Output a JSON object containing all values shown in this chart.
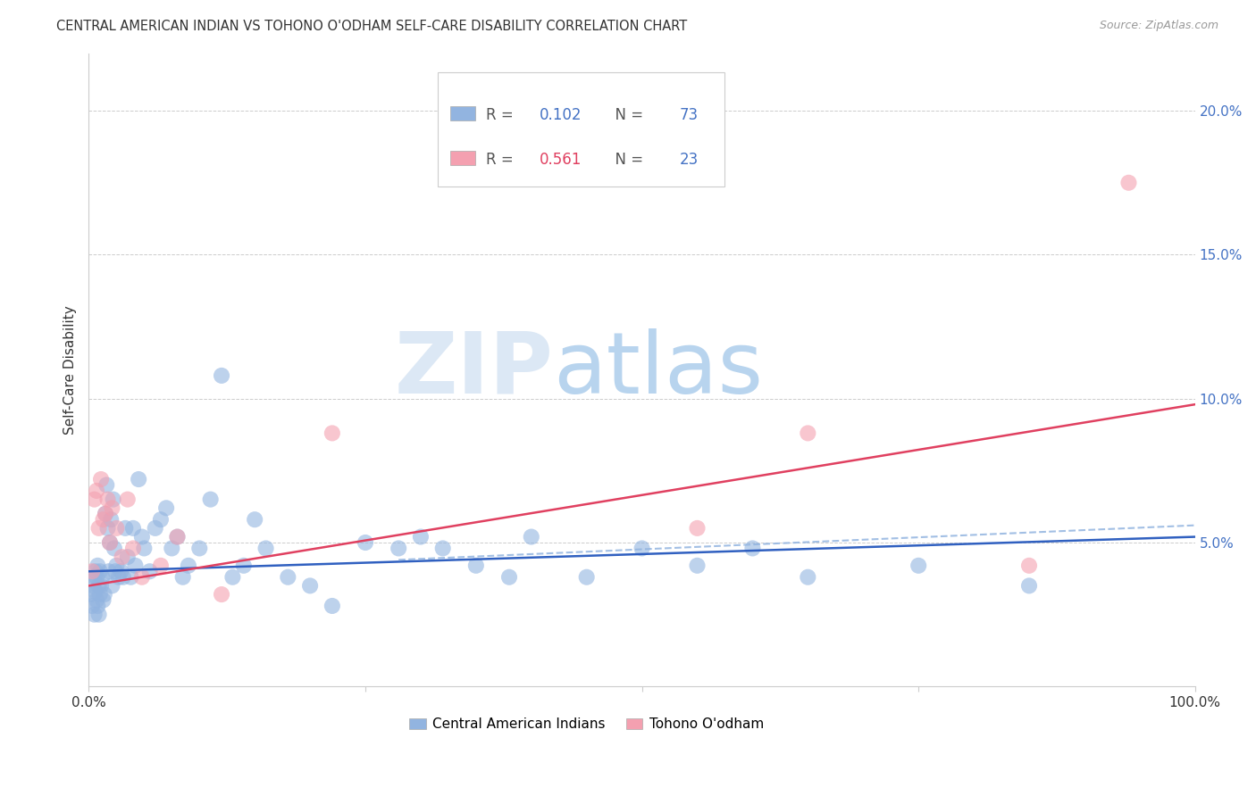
{
  "title": "CENTRAL AMERICAN INDIAN VS TOHONO O'ODHAM SELF-CARE DISABILITY CORRELATION CHART",
  "source": "Source: ZipAtlas.com",
  "ylabel": "Self-Care Disability",
  "xlim": [
    0.0,
    1.0
  ],
  "ylim": [
    0.0,
    0.22
  ],
  "yticks": [
    0.0,
    0.05,
    0.1,
    0.15,
    0.2
  ],
  "ytick_labels": [
    "",
    "5.0%",
    "10.0%",
    "15.0%",
    "20.0%"
  ],
  "xticks": [
    0.0,
    0.25,
    0.5,
    0.75,
    1.0
  ],
  "xtick_labels": [
    "0.0%",
    "",
    "",
    "",
    "100.0%"
  ],
  "blue_R": 0.102,
  "blue_N": 73,
  "pink_R": 0.561,
  "pink_N": 23,
  "blue_color": "#92b4e0",
  "pink_color": "#f4a0b0",
  "blue_line_color": "#3060c0",
  "pink_line_color": "#e04060",
  "dashed_line_color": "#92b4e0",
  "legend_label_blue": "Central American Indians",
  "legend_label_pink": "Tohono O'odham",
  "blue_trend": [
    0.0,
    0.04,
    1.0,
    0.052
  ],
  "pink_trend": [
    0.0,
    0.035,
    1.0,
    0.098
  ],
  "dashed_trend": [
    0.28,
    0.044,
    1.0,
    0.056
  ],
  "blue_x": [
    0.002,
    0.003,
    0.004,
    0.005,
    0.005,
    0.006,
    0.006,
    0.007,
    0.007,
    0.008,
    0.008,
    0.009,
    0.009,
    0.01,
    0.01,
    0.011,
    0.012,
    0.013,
    0.014,
    0.015,
    0.016,
    0.017,
    0.018,
    0.019,
    0.02,
    0.021,
    0.022,
    0.023,
    0.024,
    0.025,
    0.027,
    0.029,
    0.031,
    0.033,
    0.035,
    0.038,
    0.04,
    0.042,
    0.045,
    0.048,
    0.05,
    0.055,
    0.06,
    0.065,
    0.07,
    0.075,
    0.08,
    0.085,
    0.09,
    0.1,
    0.11,
    0.12,
    0.13,
    0.14,
    0.15,
    0.16,
    0.18,
    0.2,
    0.22,
    0.25,
    0.28,
    0.3,
    0.32,
    0.35,
    0.38,
    0.4,
    0.45,
    0.5,
    0.55,
    0.6,
    0.65,
    0.75,
    0.85
  ],
  "blue_y": [
    0.032,
    0.028,
    0.035,
    0.038,
    0.025,
    0.04,
    0.033,
    0.03,
    0.038,
    0.042,
    0.028,
    0.035,
    0.025,
    0.04,
    0.032,
    0.035,
    0.038,
    0.03,
    0.032,
    0.06,
    0.07,
    0.055,
    0.04,
    0.05,
    0.058,
    0.035,
    0.065,
    0.048,
    0.04,
    0.042,
    0.038,
    0.04,
    0.038,
    0.055,
    0.045,
    0.038,
    0.055,
    0.042,
    0.072,
    0.052,
    0.048,
    0.04,
    0.055,
    0.058,
    0.062,
    0.048,
    0.052,
    0.038,
    0.042,
    0.048,
    0.065,
    0.108,
    0.038,
    0.042,
    0.058,
    0.048,
    0.038,
    0.035,
    0.028,
    0.05,
    0.048,
    0.052,
    0.048,
    0.042,
    0.038,
    0.052,
    0.038,
    0.048,
    0.042,
    0.048,
    0.038,
    0.042,
    0.035
  ],
  "pink_x": [
    0.003,
    0.005,
    0.007,
    0.009,
    0.011,
    0.013,
    0.015,
    0.017,
    0.019,
    0.021,
    0.025,
    0.03,
    0.035,
    0.04,
    0.048,
    0.065,
    0.08,
    0.12,
    0.22,
    0.55,
    0.65,
    0.85,
    0.94
  ],
  "pink_y": [
    0.04,
    0.065,
    0.068,
    0.055,
    0.072,
    0.058,
    0.06,
    0.065,
    0.05,
    0.062,
    0.055,
    0.045,
    0.065,
    0.048,
    0.038,
    0.042,
    0.052,
    0.032,
    0.088,
    0.055,
    0.088,
    0.042,
    0.175
  ]
}
